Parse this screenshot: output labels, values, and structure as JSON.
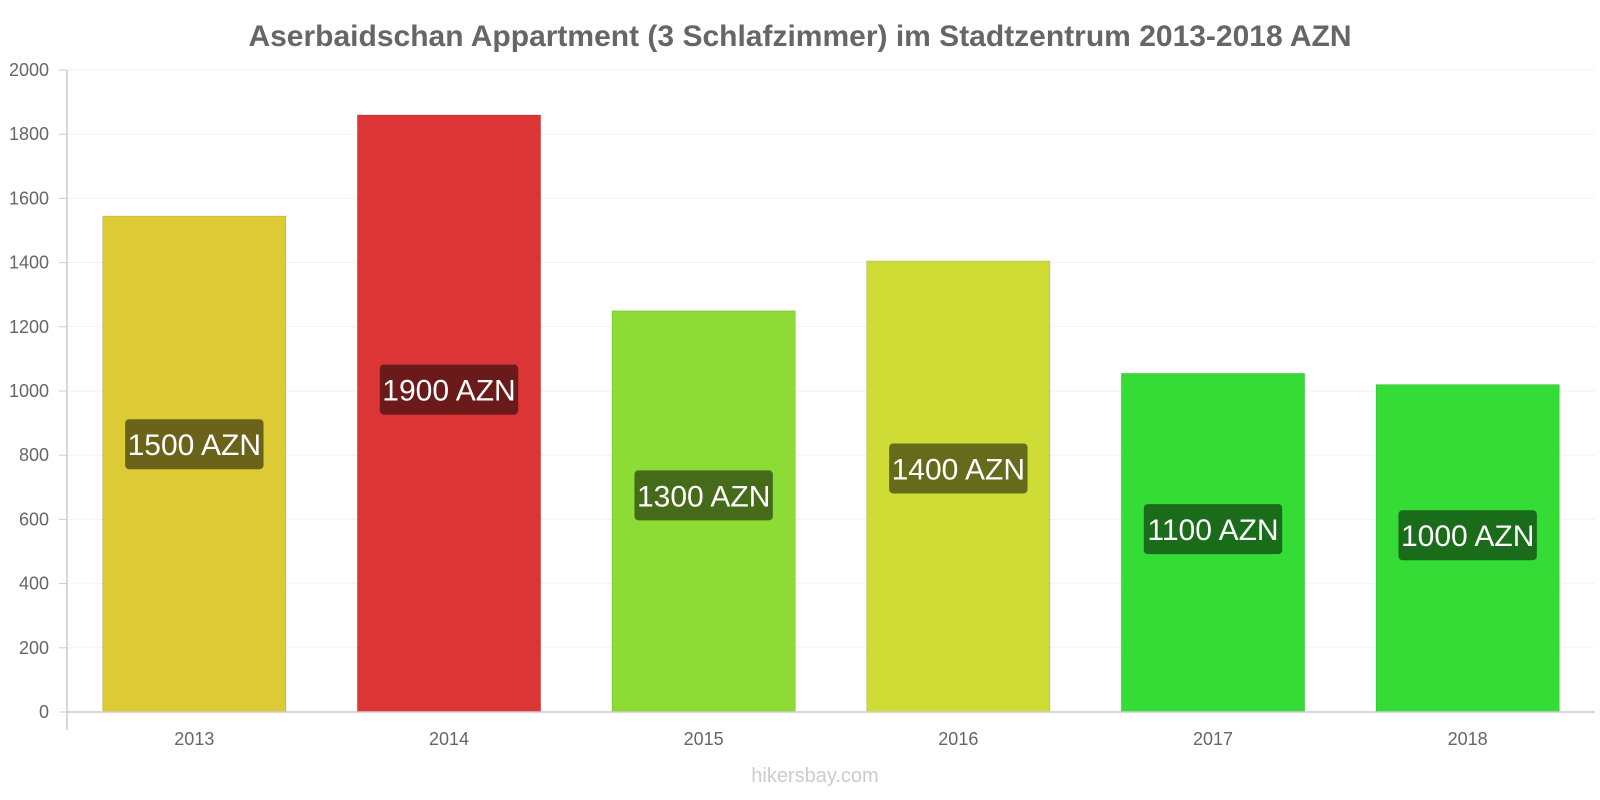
{
  "chart_data": {
    "type": "bar",
    "title": "Aserbaidschan Appartment (3 Schlafzimmer) im Stadtzentrum 2013-2018 AZN",
    "categories": [
      "2013",
      "2014",
      "2015",
      "2016",
      "2017",
      "2018"
    ],
    "values": [
      1545,
      1860,
      1250,
      1405,
      1055,
      1020
    ],
    "value_labels": [
      "1500 AZN",
      "1900 AZN",
      "1300 AZN",
      "1400 AZN",
      "1100 AZN",
      "1000 AZN"
    ],
    "bar_colors": [
      "#dccb35",
      "#dc3535",
      "#8ddc35",
      "#cfdc35",
      "#35dc35",
      "#35dc35"
    ],
    "label_bg_colors": [
      "#6b631a",
      "#6b1a1a",
      "#456b1a",
      "#656b1a",
      "#1a6b1a",
      "#1a6b1a"
    ],
    "y_ticks": [
      "0",
      "200",
      "400",
      "600",
      "800",
      "1000",
      "1200",
      "1400",
      "1600",
      "1800",
      "2000"
    ],
    "ylim": [
      0,
      2000
    ],
    "grid": true,
    "xlabel": "",
    "ylabel": ""
  },
  "watermark": "hikersbay.com"
}
